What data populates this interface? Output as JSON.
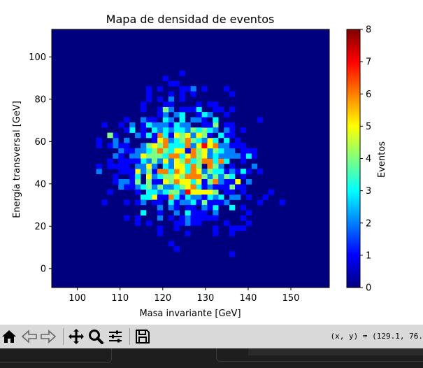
{
  "chart_data": {
    "type": "heatmap",
    "title": "Mapa de densidad de eventos",
    "xlabel": "Masa invariante [GeV]",
    "ylabel": "Energía transversal [GeV]",
    "xlim": [
      94,
      159
    ],
    "ylim": [
      -9,
      113
    ],
    "x_ticks": [
      100,
      110,
      120,
      130,
      140,
      150
    ],
    "y_ticks": [
      0,
      20,
      40,
      60,
      80,
      100
    ],
    "bins": 50,
    "colormap": "jet",
    "background_color": "#00007f",
    "colorbar": {
      "label": "Eventos",
      "min": 0,
      "max": 8,
      "ticks": [
        0,
        1,
        2,
        3,
        4,
        5,
        6,
        7,
        8
      ]
    },
    "grid": false,
    "notable_bins": [
      {
        "x": 125.9,
        "y": 36.2,
        "count": 7
      },
      {
        "x": 129.9,
        "y": 58.2,
        "count": 7
      },
      {
        "x": 119.4,
        "y": 56.0,
        "count": 6
      },
      {
        "x": 126.5,
        "y": 45.7,
        "count": 6
      },
      {
        "x": 128.6,
        "y": 63.1,
        "count": 5
      },
      {
        "x": 124.6,
        "y": 49.3,
        "count": 5
      },
      {
        "x": 107.4,
        "y": 63.1,
        "count": 4
      }
    ]
  },
  "toolbar": {
    "coords": "(x, y) = (129.1, 76."
  },
  "icons": {
    "home": "home-icon",
    "back": "back-arrow-icon",
    "forward": "forward-arrow-icon",
    "pan": "pan-icon",
    "zoom": "zoom-icon",
    "configure": "configure-subplots-icon",
    "save": "save-icon"
  }
}
